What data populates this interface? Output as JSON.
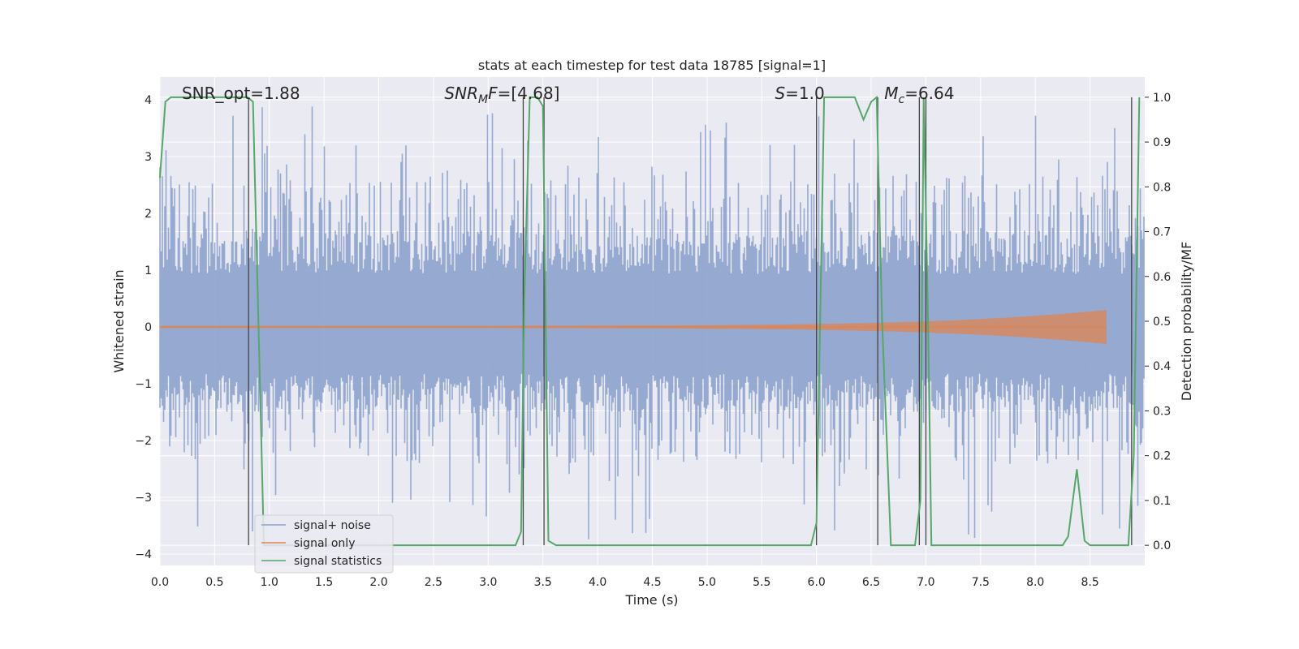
{
  "chart_data": {
    "type": "line",
    "title": "stats at each timestep for test data 18785 [signal=1]",
    "xlabel": "Time (s)",
    "ylabel": "Whitened strain",
    "ylabel_right": "Detection probability/MF",
    "xlim": [
      0.0,
      9.0
    ],
    "ylim": [
      -4.2,
      4.4
    ],
    "ylim_right": [
      -0.045,
      1.045
    ],
    "x_ticks": [
      0.0,
      0.5,
      1.0,
      1.5,
      2.0,
      2.5,
      3.0,
      3.5,
      4.0,
      4.5,
      5.0,
      5.5,
      6.0,
      6.5,
      7.0,
      7.5,
      8.0,
      8.5
    ],
    "y_ticks": [
      -4,
      -3,
      -2,
      -1,
      0,
      1,
      2,
      3,
      4
    ],
    "y_ticks_right": [
      0.0,
      0.1,
      0.2,
      0.3,
      0.4,
      0.5,
      0.6,
      0.7,
      0.8,
      0.9,
      1.0
    ],
    "grid": true,
    "legend_position": "lower-left",
    "colors": {
      "background": "#eaeaf2",
      "grid": "#ffffff",
      "noise": "#8da2cc",
      "signal": "#dd8452",
      "stats": "#55a868",
      "vlines": "#444444"
    },
    "annotations": [
      {
        "text_base": "SNR_opt=1.88",
        "sub": "",
        "text_tail": "",
        "x": 0.2,
        "y": 4.1
      },
      {
        "text_base": "SNR",
        "sub": "M",
        "text_tail": "F=[4.68]",
        "x": 2.6,
        "y": 4.1
      },
      {
        "text_base": "S",
        "sub": "",
        "text_tail": "=1.0",
        "x": 5.62,
        "y": 4.1
      },
      {
        "text_base": "M",
        "sub": "c",
        "text_tail": "=6.64",
        "x": 6.62,
        "y": 4.1
      }
    ],
    "series": [
      {
        "name": "signal+ noise",
        "kind": "noise_band",
        "x_range": [
          0.0,
          9.0
        ],
        "typical_lower": -1.5,
        "typical_upper": 1.7,
        "peak_max": 3.9,
        "peak_min": -3.8
      },
      {
        "name": "signal only",
        "kind": "chirp",
        "x_range": [
          0.0,
          8.65
        ],
        "amplitude_start": 0.02,
        "amplitude_end": 0.3
      },
      {
        "name": "signal statistics",
        "kind": "probability",
        "axis": "right",
        "x": [
          0.0,
          0.05,
          0.1,
          0.2,
          0.3,
          0.4,
          0.5,
          0.6,
          0.7,
          0.8,
          0.85,
          0.92,
          0.95,
          1.0,
          1.5,
          2.0,
          2.5,
          3.0,
          3.25,
          3.3,
          3.33,
          3.38,
          3.45,
          3.5,
          3.55,
          3.62,
          4.0,
          4.5,
          5.0,
          5.5,
          5.95,
          6.0,
          6.07,
          6.2,
          6.35,
          6.43,
          6.5,
          6.55,
          6.6,
          6.68,
          6.9,
          6.95,
          6.98,
          7.02,
          7.05,
          7.1,
          7.5,
          8.0,
          8.25,
          8.3,
          8.38,
          8.45,
          8.5,
          8.85,
          8.9,
          8.95
        ],
        "y": [
          0.82,
          0.99,
          1.0,
          1.0,
          1.0,
          1.0,
          1.0,
          1.0,
          1.0,
          1.0,
          0.99,
          0.3,
          0.0,
          0.0,
          0.0,
          0.0,
          0.0,
          0.0,
          0.0,
          0.03,
          0.55,
          1.0,
          1.0,
          0.98,
          0.01,
          0.0,
          0.0,
          0.0,
          0.0,
          0.0,
          0.0,
          0.05,
          1.0,
          1.0,
          1.0,
          0.95,
          0.99,
          1.0,
          0.5,
          0.0,
          0.0,
          0.1,
          1.0,
          0.5,
          0.0,
          0.0,
          0.0,
          0.0,
          0.0,
          0.02,
          0.17,
          0.01,
          0.0,
          0.0,
          0.2,
          1.0
        ]
      }
    ],
    "vlines": [
      0.81,
      3.32,
      3.51,
      6.0,
      6.56,
      6.94,
      7.0,
      8.88
    ]
  }
}
